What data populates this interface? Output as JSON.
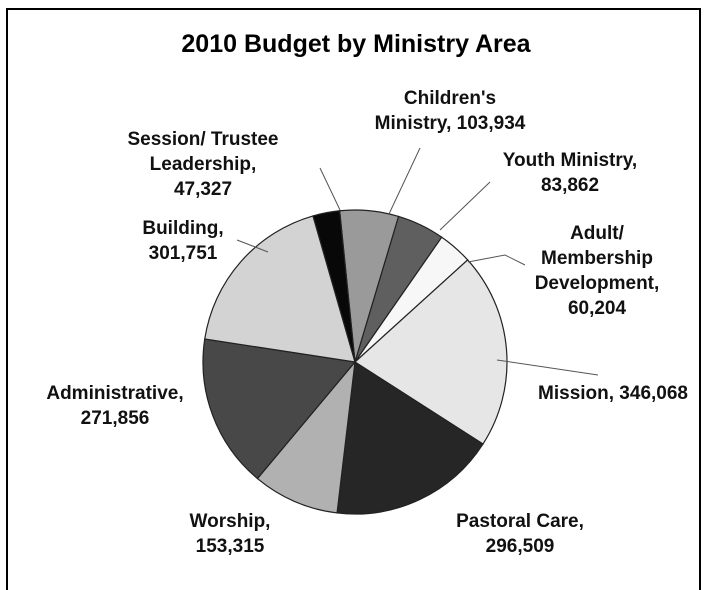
{
  "chart_data": {
    "type": "pie",
    "title": "2010 Budget by Ministry Area",
    "start_angle_deg": -5.8,
    "slices": [
      {
        "label": [
          "Children's",
          "Ministry, 103,934"
        ],
        "value": 103934,
        "color": "#9a9a9a"
      },
      {
        "label": [
          "Youth Ministry,",
          "83,862"
        ],
        "value": 83862,
        "color": "#5f5f5f"
      },
      {
        "label": [
          "Adult/",
          "Membership",
          "Development,",
          "60,204"
        ],
        "value": 60204,
        "color": "#f7f7f7"
      },
      {
        "label": [
          "Mission, 346,068"
        ],
        "value": 346068,
        "color": "#e6e6e6"
      },
      {
        "label": [
          "Pastoral Care,",
          "296,509"
        ],
        "value": 296509,
        "color": "#262626"
      },
      {
        "label": [
          "Worship,",
          "153,315"
        ],
        "value": 153315,
        "color": "#b1b1b1"
      },
      {
        "label": [
          "Administrative,",
          "271,856"
        ],
        "value": 271856,
        "color": "#484848"
      },
      {
        "label": [
          "Building,",
          "301,751"
        ],
        "value": 301751,
        "color": "#d3d3d3"
      },
      {
        "label": [
          "Session/ Trustee",
          "Leadership,",
          "47,327"
        ],
        "value": 47327,
        "color": "#080808"
      }
    ]
  }
}
